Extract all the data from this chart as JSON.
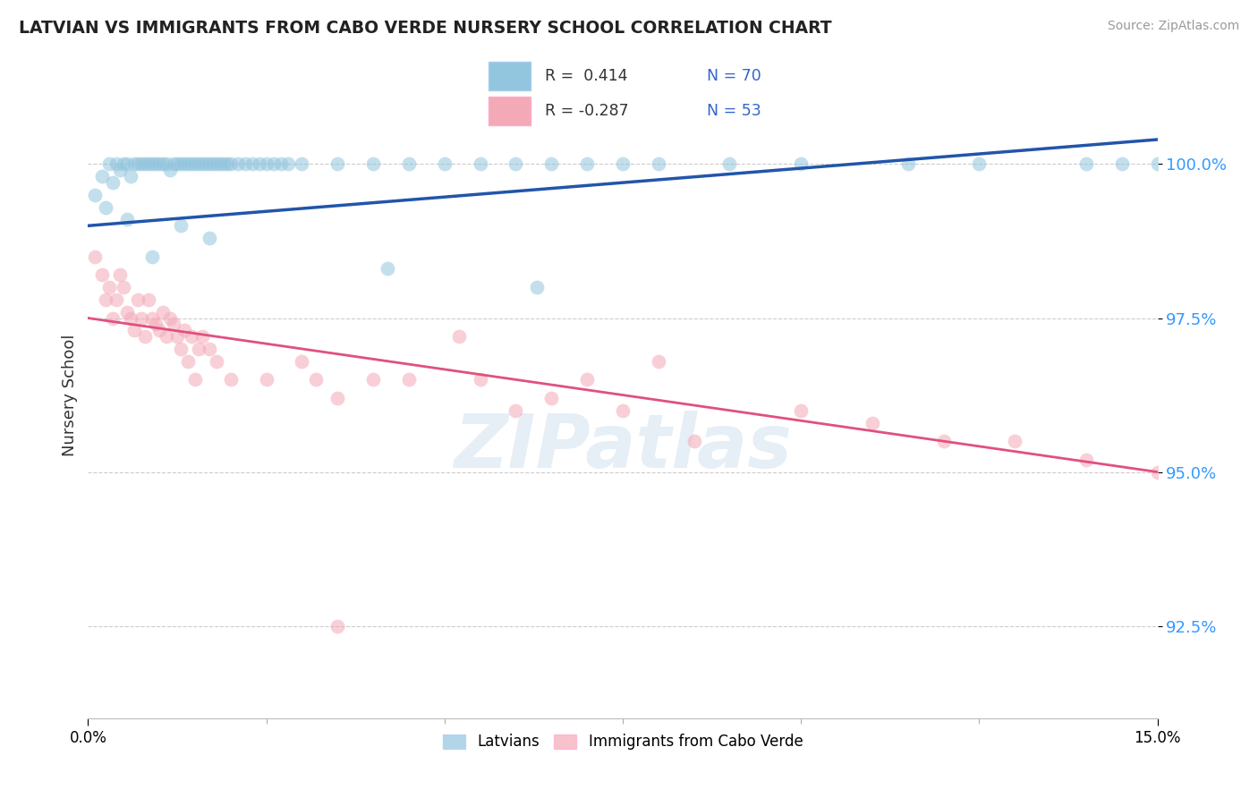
{
  "title": "LATVIAN VS IMMIGRANTS FROM CABO VERDE NURSERY SCHOOL CORRELATION CHART",
  "source_text": "Source: ZipAtlas.com",
  "ylabel": "Nursery School",
  "xlim": [
    0.0,
    15.0
  ],
  "ylim": [
    91.0,
    101.5
  ],
  "yticks": [
    92.5,
    95.0,
    97.5,
    100.0
  ],
  "ytick_labels": [
    "92.5%",
    "95.0%",
    "97.5%",
    "100.0%"
  ],
  "blue_R": 0.414,
  "blue_N": 70,
  "pink_R": -0.287,
  "pink_N": 53,
  "blue_color": "#92C5DE",
  "pink_color": "#F4A9B7",
  "blue_line_color": "#2255AA",
  "pink_line_color": "#E05080",
  "blue_scatter_x": [
    0.1,
    0.2,
    0.3,
    0.35,
    0.4,
    0.45,
    0.5,
    0.55,
    0.6,
    0.65,
    0.7,
    0.75,
    0.8,
    0.85,
    0.9,
    0.95,
    1.0,
    1.05,
    1.1,
    1.15,
    1.2,
    1.25,
    1.3,
    1.35,
    1.4,
    1.45,
    1.5,
    1.55,
    1.6,
    1.65,
    1.7,
    1.75,
    1.8,
    1.85,
    1.9,
    1.95,
    2.0,
    2.1,
    2.2,
    2.3,
    2.4,
    2.5,
    2.6,
    2.7,
    2.8,
    3.0,
    3.5,
    4.0,
    4.5,
    5.0,
    5.5,
    6.0,
    6.5,
    7.0,
    7.5,
    8.0,
    9.0,
    10.0,
    11.5,
    12.5,
    14.0,
    14.5,
    15.0,
    0.25,
    0.55,
    0.9,
    1.3,
    1.7,
    4.2,
    6.3
  ],
  "blue_scatter_y": [
    99.5,
    99.8,
    100.0,
    99.7,
    100.0,
    99.9,
    100.0,
    100.0,
    99.8,
    100.0,
    100.0,
    100.0,
    100.0,
    100.0,
    100.0,
    100.0,
    100.0,
    100.0,
    100.0,
    99.9,
    100.0,
    100.0,
    100.0,
    100.0,
    100.0,
    100.0,
    100.0,
    100.0,
    100.0,
    100.0,
    100.0,
    100.0,
    100.0,
    100.0,
    100.0,
    100.0,
    100.0,
    100.0,
    100.0,
    100.0,
    100.0,
    100.0,
    100.0,
    100.0,
    100.0,
    100.0,
    100.0,
    100.0,
    100.0,
    100.0,
    100.0,
    100.0,
    100.0,
    100.0,
    100.0,
    100.0,
    100.0,
    100.0,
    100.0,
    100.0,
    100.0,
    100.0,
    100.0,
    99.3,
    99.1,
    98.5,
    99.0,
    98.8,
    98.3,
    98.0
  ],
  "pink_scatter_x": [
    0.1,
    0.2,
    0.25,
    0.3,
    0.35,
    0.4,
    0.45,
    0.5,
    0.55,
    0.6,
    0.65,
    0.7,
    0.75,
    0.8,
    0.85,
    0.9,
    0.95,
    1.0,
    1.05,
    1.1,
    1.15,
    1.2,
    1.25,
    1.3,
    1.35,
    1.4,
    1.45,
    1.5,
    1.55,
    1.6,
    1.7,
    1.8,
    2.0,
    2.5,
    3.0,
    3.5,
    4.0,
    4.5,
    5.5,
    6.0,
    6.5,
    7.0,
    7.5,
    8.5,
    10.0,
    11.0,
    12.0,
    13.0,
    14.0,
    15.0,
    3.2,
    5.2,
    8.0
  ],
  "pink_scatter_y": [
    98.5,
    98.2,
    97.8,
    98.0,
    97.5,
    97.8,
    98.2,
    98.0,
    97.6,
    97.5,
    97.3,
    97.8,
    97.5,
    97.2,
    97.8,
    97.5,
    97.4,
    97.3,
    97.6,
    97.2,
    97.5,
    97.4,
    97.2,
    97.0,
    97.3,
    96.8,
    97.2,
    96.5,
    97.0,
    97.2,
    97.0,
    96.8,
    96.5,
    96.5,
    96.8,
    96.2,
    96.5,
    96.5,
    96.5,
    96.0,
    96.2,
    96.5,
    96.0,
    95.5,
    96.0,
    95.8,
    95.5,
    95.5,
    95.2,
    95.0,
    96.5,
    97.2,
    96.8
  ],
  "pink_extra_x": [
    3.5
  ],
  "pink_extra_y": [
    92.5
  ],
  "watermark_text": "ZIPatlas",
  "background_color": "#FFFFFF",
  "grid_color": "#CCCCCC",
  "legend_blue_label": "Latvians",
  "legend_pink_label": "Immigrants from Cabo Verde"
}
